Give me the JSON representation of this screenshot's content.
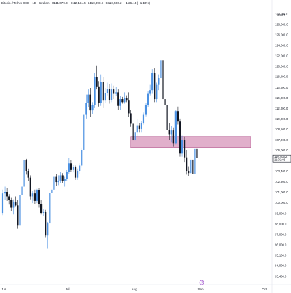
{
  "header": {
    "symbol": "Bitcoin / Tether USD · 1D · Kraken",
    "open": "O111,679.3",
    "high": "H112,161.4",
    "low": "L110,398.1",
    "close": "C110,406.2",
    "change": "−1,264.3 (−1.13%)",
    "currency": "USDT"
  },
  "chart_data": {
    "type": "candlestick",
    "y_range": [
      93500,
      130800
    ],
    "y_ticks": [
      "130,000.0",
      "128,000.0",
      "126,000.0",
      "124,000.0",
      "122,000.0",
      "120,000.0",
      "118,000.0",
      "116,000.0",
      "114,000.0",
      "112,000.0",
      "110,000.0",
      "108,500.0",
      "107,000.0",
      "106,000.0",
      "104,600.0",
      "103,400.0",
      "102,300.0",
      "101,000.0",
      "100,000.0",
      "99,000.0",
      "98,000.0",
      "97,000.0",
      "96,000.0",
      "95,100.0",
      "94,000.0",
      "93,400.0"
    ],
    "x_labels": [
      {
        "label": "Jun",
        "day": 0
      },
      {
        "label": "Jul",
        "day": 30
      },
      {
        "label": "Aug",
        "day": 61
      },
      {
        "label": "Sep",
        "day": 92
      },
      {
        "label": "Oct",
        "day": 122
      }
    ],
    "zone": {
      "from_day": 60,
      "to_day": 116,
      "low": 111800,
      "high": 113300
    },
    "last_price": {
      "value": "110,406.2",
      "countdown": "11:02:01"
    },
    "candles": [
      [
        103000,
        106200,
        102800,
        105700
      ],
      [
        105700,
        106600,
        104800,
        105900
      ],
      [
        105900,
        106400,
        104700,
        105300
      ],
      [
        105300,
        105600,
        104200,
        104800
      ],
      [
        104800,
        105100,
        103300,
        103800
      ],
      [
        103800,
        104900,
        102900,
        104500
      ],
      [
        104500,
        105300,
        103900,
        104100
      ],
      [
        104100,
        104800,
        101000,
        101400
      ],
      [
        101400,
        105700,
        100900,
        105500
      ],
      [
        105500,
        106900,
        105200,
        106600
      ],
      [
        106600,
        110200,
        106200,
        110100
      ],
      [
        110100,
        110300,
        108200,
        108700
      ],
      [
        108700,
        109000,
        107300,
        107800
      ],
      [
        107800,
        108100,
        104900,
        105300
      ],
      [
        105300,
        106000,
        104400,
        105700
      ],
      [
        105700,
        106200,
        104300,
        104700
      ],
      [
        104700,
        106300,
        104400,
        106100
      ],
      [
        106100,
        106400,
        103800,
        104300
      ],
      [
        104300,
        104800,
        102900,
        103100
      ],
      [
        103100,
        103600,
        102700,
        103200
      ],
      [
        103200,
        103500,
        99800,
        100100
      ],
      [
        100100,
        101900,
        98300,
        101700
      ],
      [
        101700,
        105900,
        101500,
        105800
      ],
      [
        105800,
        106700,
        105400,
        106200
      ],
      [
        106200,
        108200,
        106000,
        107900
      ],
      [
        107900,
        108300,
        106700,
        107200
      ],
      [
        107200,
        108100,
        106800,
        107400
      ],
      [
        107400,
        108600,
        107100,
        108100
      ],
      [
        108100,
        108400,
        107100,
        107400
      ],
      [
        107400,
        107900,
        106600,
        107600
      ],
      [
        107600,
        108800,
        107300,
        108600
      ],
      [
        108600,
        110400,
        108300,
        109700
      ],
      [
        109700,
        110100,
        108600,
        108900
      ],
      [
        108900,
        109500,
        108500,
        109200
      ],
      [
        109200,
        109400,
        107500,
        107800
      ],
      [
        107800,
        109000,
        107500,
        108700
      ],
      [
        108700,
        109700,
        108300,
        109400
      ],
      [
        109400,
        111800,
        109100,
        111500
      ],
      [
        111500,
        116700,
        111200,
        116200
      ],
      [
        116200,
        118900,
        115700,
        117800
      ],
      [
        117800,
        119600,
        117200,
        118900
      ],
      [
        118900,
        119800,
        115900,
        116800
      ],
      [
        116800,
        117900,
        116300,
        117500
      ],
      [
        117500,
        121800,
        117100,
        121200
      ],
      [
        121200,
        122800,
        119600,
        120000
      ],
      [
        120000,
        120700,
        117300,
        117800
      ],
      [
        117800,
        121600,
        117400,
        120600
      ],
      [
        120600,
        121200,
        117100,
        118100
      ],
      [
        118100,
        119800,
        117800,
        119100
      ],
      [
        119100,
        120500,
        118800,
        119700
      ],
      [
        119700,
        120300,
        117700,
        118200
      ],
      [
        118200,
        120400,
        117900,
        119600
      ],
      [
        119600,
        120100,
        118300,
        119000
      ],
      [
        119000,
        119900,
        118700,
        119200
      ],
      [
        119200,
        119600,
        116900,
        117400
      ],
      [
        117400,
        118700,
        116900,
        118300
      ],
      [
        118300,
        118600,
        117700,
        117900
      ],
      [
        117900,
        119200,
        117700,
        118400
      ],
      [
        118400,
        118800,
        117900,
        118100
      ],
      [
        118100,
        119200,
        115900,
        116400
      ],
      [
        116400,
        116900,
        114600,
        115000
      ],
      [
        115000,
        115600,
        112400,
        112800
      ],
      [
        112800,
        114300,
        112600,
        113900
      ],
      [
        113900,
        115700,
        113200,
        114800
      ],
      [
        114800,
        115100,
        113900,
        114300
      ],
      [
        114300,
        115400,
        113900,
        115100
      ],
      [
        115100,
        116500,
        114900,
        116200
      ],
      [
        116200,
        117800,
        116000,
        117500
      ],
      [
        117500,
        119400,
        117200,
        119000
      ],
      [
        119000,
        120200,
        118800,
        119500
      ],
      [
        119500,
        122300,
        119000,
        121800
      ],
      [
        121800,
        122400,
        117900,
        118300
      ],
      [
        118300,
        120500,
        117900,
        120200
      ],
      [
        120200,
        121600,
        119500,
        121100
      ],
      [
        121100,
        124300,
        120700,
        123500
      ],
      [
        123500,
        124500,
        117200,
        118300
      ],
      [
        118300,
        118800,
        117000,
        117500
      ],
      [
        117500,
        117800,
        113800,
        114200
      ],
      [
        114200,
        115100,
        112800,
        113600
      ],
      [
        113600,
        114700,
        112500,
        114100
      ],
      [
        114100,
        114500,
        112000,
        112400
      ],
      [
        112400,
        116900,
        112200,
        116700
      ],
      [
        116700,
        117300,
        114900,
        115300
      ],
      [
        115300,
        115700,
        110600,
        111000
      ],
      [
        111000,
        113400,
        110600,
        112800
      ],
      [
        112800,
        113300,
        109900,
        110500
      ],
      [
        110500,
        111500,
        108200,
        108700
      ],
      [
        108700,
        109300,
        108000,
        108400
      ],
      [
        108400,
        110700,
        108200,
        110200
      ],
      [
        110200,
        111000,
        107800,
        108300
      ],
      [
        108300,
        112200,
        107700,
        111700
      ],
      [
        111700,
        112200,
        110400,
        110406
      ]
    ]
  }
}
